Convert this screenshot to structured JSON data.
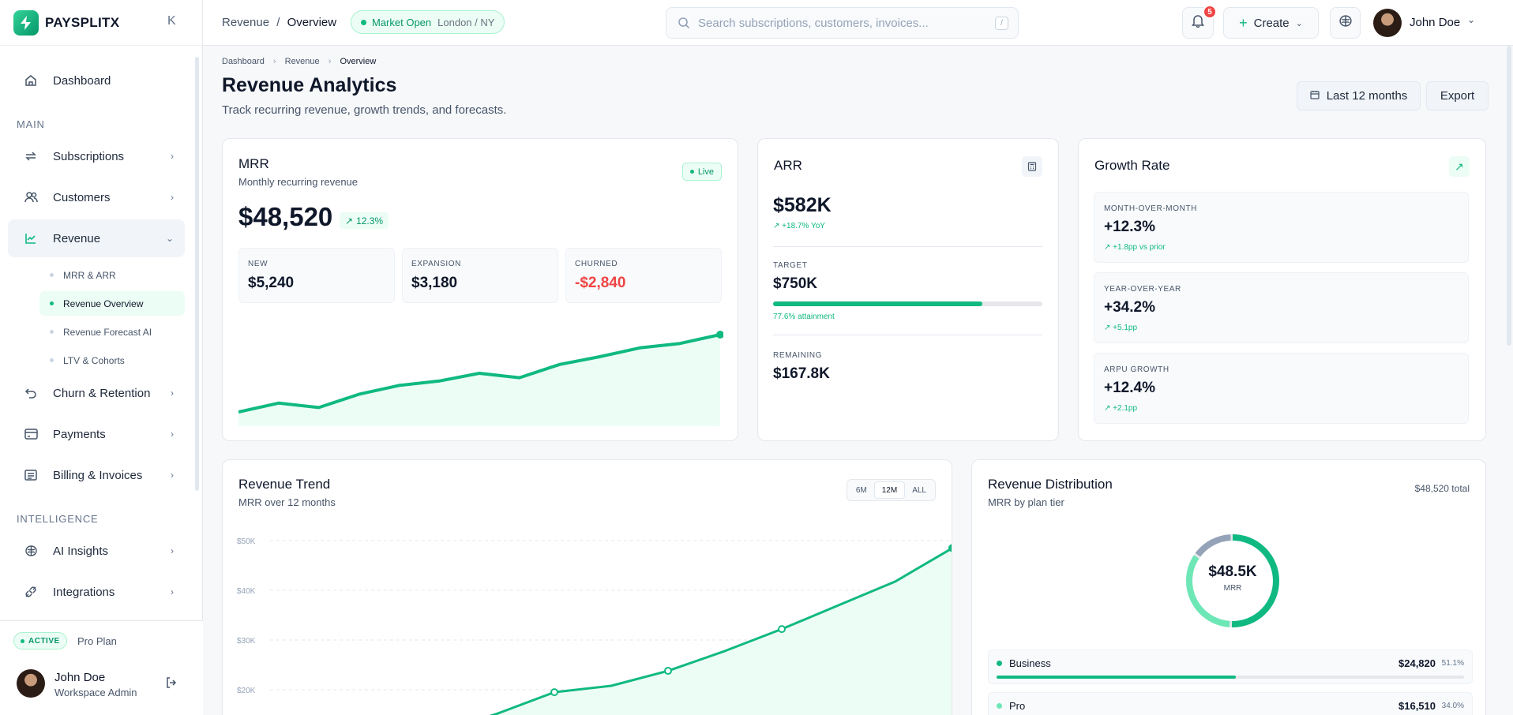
{
  "brand": {
    "name": "PAYSPLITX",
    "collapse_glyph": "K"
  },
  "sidebar": {
    "dashboard": "Dashboard",
    "section_main": "MAIN",
    "items": [
      {
        "label": "Subscriptions",
        "icon": "repeat-icon"
      },
      {
        "label": "Customers",
        "icon": "users-icon"
      },
      {
        "label": "Revenue",
        "icon": "chart-line-icon"
      }
    ],
    "revenue_sub": [
      "MRR & ARR",
      "Revenue Overview",
      "Revenue Forecast AI",
      "LTV & Cohorts"
    ],
    "items2": [
      {
        "label": "Churn & Retention",
        "icon": "undo-icon"
      },
      {
        "label": "Payments",
        "icon": "card-icon"
      },
      {
        "label": "Billing & Invoices",
        "icon": "receipt-icon"
      }
    ],
    "section_intel": "INTELLIGENCE",
    "items3": [
      {
        "label": "AI Insights",
        "icon": "brain-icon"
      },
      {
        "label": "Integrations",
        "icon": "plug-icon"
      }
    ],
    "footer": {
      "badge": "ACTIVE",
      "plan": "Pro Plan",
      "user_name": "John Doe",
      "user_role": "Workspace Admin"
    }
  },
  "topbar": {
    "crumb_parent": "Revenue",
    "crumb_sep": "/",
    "crumb_current": "Overview",
    "market_status": "Market Open",
    "market_location": "London / NY",
    "search_placeholder": "Search subscriptions, customers, invoices...",
    "search_shortcut": "/",
    "notifications": "5",
    "create_label": "Create",
    "user_name": "John Doe"
  },
  "page": {
    "crumbs": [
      "Dashboard",
      "Revenue",
      "Overview"
    ],
    "title": "Revenue Analytics",
    "subtitle": "Track recurring revenue, growth trends, and forecasts.",
    "range_label": "Last 12 months",
    "export_label": "Export"
  },
  "mrr": {
    "title": "MRR",
    "subtitle": "Monthly recurring revenue",
    "live": "Live",
    "value": "$48,520",
    "change": "12.3%",
    "new_label": "NEW",
    "new_value": "$5,240",
    "exp_label": "EXPANSION",
    "exp_value": "$3,180",
    "churn_label": "CHURNED",
    "churn_value": "-$2,840",
    "spark": [
      10,
      18,
      14,
      26,
      34,
      38,
      45,
      41,
      53,
      60,
      68,
      72,
      80
    ]
  },
  "arr": {
    "title": "ARR",
    "value": "$582K",
    "yoy": "+18.7% YoY",
    "target_label": "TARGET",
    "target_value": "$750K",
    "attainment": "77.6% attainment",
    "attainment_pct": 77.6,
    "remaining_label": "REMAINING",
    "remaining_value": "$167.8K"
  },
  "growth": {
    "title": "Growth Rate",
    "rows": [
      {
        "label": "MONTH-OVER-MONTH",
        "value": "+12.3%",
        "delta": "+1.8pp vs prior"
      },
      {
        "label": "YEAR-OVER-YEAR",
        "value": "+34.2%",
        "delta": "+5.1pp"
      },
      {
        "label": "ARPU GROWTH",
        "value": "+12.4%",
        "delta": "+2.1pp"
      }
    ]
  },
  "trend": {
    "title": "Revenue Trend",
    "subtitle": "MRR over 12 months",
    "ranges": [
      "6M",
      "12M",
      "ALL"
    ],
    "y_ticks": [
      "$50K",
      "$40K",
      "$30K",
      "$20K"
    ]
  },
  "chart_data": {
    "type": "area",
    "xlabel": "",
    "ylabel": "",
    "ylim": [
      0,
      50000
    ],
    "values": [
      8500,
      11200,
      12500,
      11500,
      15200,
      19500,
      20800,
      23800,
      27800,
      32200,
      37000,
      41800,
      48500
    ],
    "markers": [
      1,
      3,
      5,
      7,
      9,
      12
    ],
    "grid": true
  },
  "distribution": {
    "title": "Revenue Distribution",
    "subtitle": "MRR by plan tier",
    "total": "$48,520 total",
    "center_value": "$48.5K",
    "center_label": "MRR",
    "tiers": [
      {
        "name": "Business",
        "amount": "$24,820",
        "pct": "51.1%",
        "share": 51.1,
        "color": "#10b981"
      },
      {
        "name": "Pro",
        "amount": "$16,510",
        "pct": "34.0%",
        "share": 34.0,
        "color": "#6ee7b7"
      }
    ],
    "donut_rest_color": "#94a3b8"
  }
}
